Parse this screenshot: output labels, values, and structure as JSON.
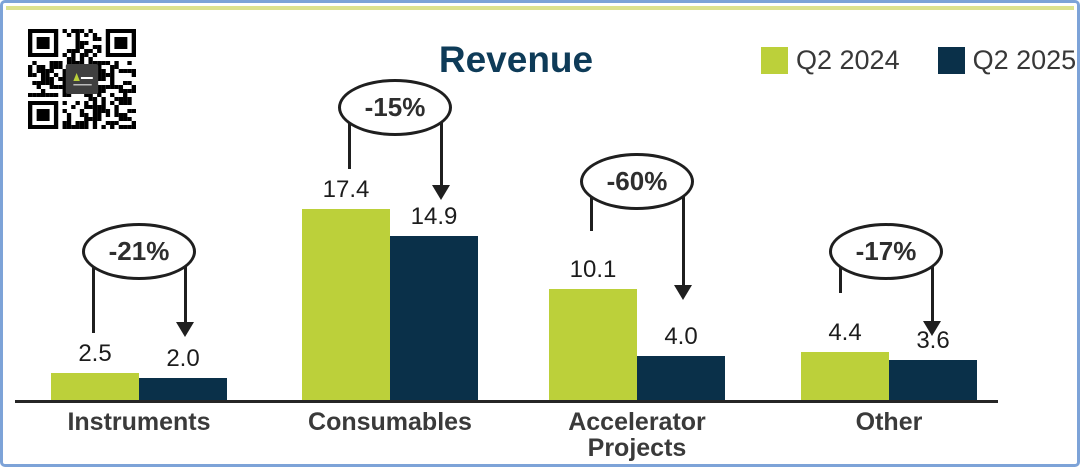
{
  "title": "Revenue",
  "colors": {
    "q2_2024_green": "#bcd03a",
    "q2_2025_navy": "#0a3049",
    "title_blue": "#0e3b58",
    "category_text": "#3a3a3a",
    "frame_border_blue": "#7da3d8",
    "top_accent_green": "#dde28f",
    "annotation_line_black": "#1f1f1f"
  },
  "legend": {
    "position": "top-right",
    "items": [
      {
        "label": "Q2 2024",
        "color": "#bcd03a"
      },
      {
        "label": "Q2 2025",
        "color": "#0a3049"
      }
    ]
  },
  "qr_code": {
    "description": "qr-code-with-center-logo"
  },
  "chart_data": {
    "type": "bar",
    "title": "Revenue",
    "categories": [
      "Instruments",
      "Consumables",
      "Accelerator Projects",
      "Other"
    ],
    "series": [
      {
        "name": "Q2 2024",
        "color": "#bcd03a",
        "values": [
          2.5,
          17.4,
          10.1,
          4.4
        ],
        "labels": [
          "2.5",
          "17.4",
          "10.1",
          "4.4"
        ]
      },
      {
        "name": "Q2 2025",
        "color": "#0a3049",
        "values": [
          2.0,
          14.9,
          4.0,
          3.6
        ],
        "labels": [
          "2.0",
          "14.9",
          "4.0",
          "3.6"
        ]
      }
    ],
    "annotations": [
      {
        "category": "Instruments",
        "label": "-21%"
      },
      {
        "category": "Consumables",
        "label": "-15%"
      },
      {
        "category": "Accelerator Projects",
        "label": "-60%"
      },
      {
        "category": "Other",
        "label": "-17%"
      }
    ],
    "value_labels_visible": true,
    "grid": false,
    "y_axis_visible": false,
    "x_axis_line_visible": true,
    "ylim": [
      0,
      20
    ]
  }
}
